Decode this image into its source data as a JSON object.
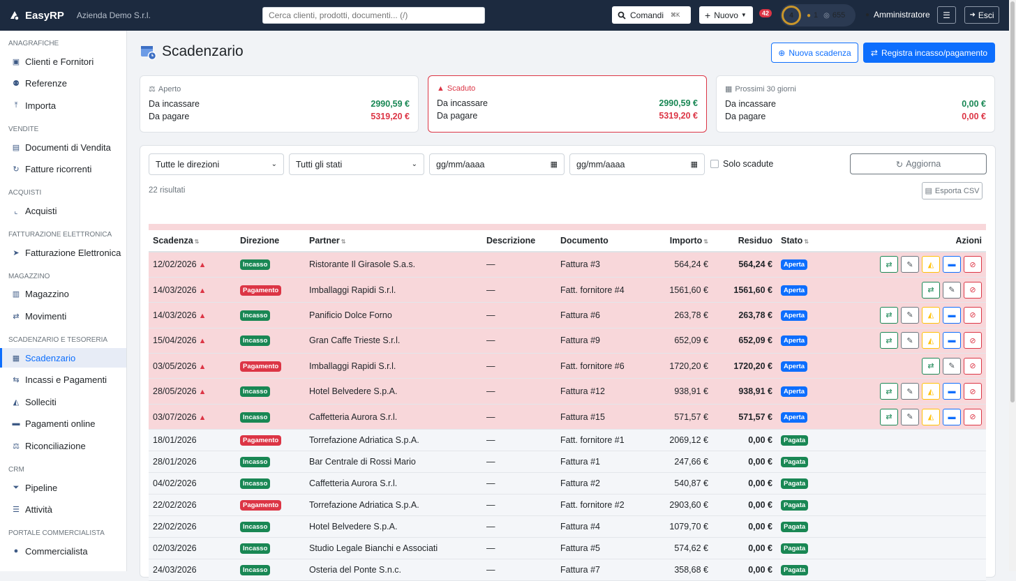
{
  "topbar": {
    "brand": "EasyRP",
    "company": "Azienda Demo S.r.l.",
    "search_placeholder": "Cerca clienti, prodotti, documenti... (/)",
    "commands_label": "Comandi",
    "commands_kbd": "⌘K",
    "new_label": "Nuovo",
    "notifications_count": "42",
    "level": "4",
    "streak": "1",
    "points": "655",
    "user": "Amministratore",
    "logout_label": "Esci"
  },
  "sidebar": {
    "sections": [
      {
        "title": "Anagrafiche",
        "items": [
          {
            "label": "Clienti e Fornitori",
            "icon": "address-card-icon"
          },
          {
            "label": "Referenze",
            "icon": "users-icon"
          },
          {
            "label": "Importa",
            "icon": "upload-icon"
          }
        ]
      },
      {
        "title": "Vendite",
        "items": [
          {
            "label": "Documenti di Vendita",
            "icon": "file-icon"
          },
          {
            "label": "Fatture ricorrenti",
            "icon": "repeat-icon"
          }
        ]
      },
      {
        "title": "Acquisti",
        "items": [
          {
            "label": "Acquisti",
            "icon": "chart-icon"
          }
        ]
      },
      {
        "title": "Fatturazione Elettronica",
        "items": [
          {
            "label": "Fatturazione Elettronica",
            "icon": "send-icon"
          }
        ]
      },
      {
        "title": "Magazzino",
        "items": [
          {
            "label": "Magazzino",
            "icon": "warehouse-icon"
          },
          {
            "label": "Movimenti",
            "icon": "arrows-icon"
          }
        ]
      },
      {
        "title": "Scadenzario e Tesoreria",
        "items": [
          {
            "label": "Scadenzario",
            "icon": "calendar-clock-icon",
            "active": true
          },
          {
            "label": "Incassi e Pagamenti",
            "icon": "exchange-icon"
          },
          {
            "label": "Solleciti",
            "icon": "bell-icon"
          },
          {
            "label": "Pagamenti online",
            "icon": "credit-card-icon"
          },
          {
            "label": "Riconciliazione",
            "icon": "scale-icon"
          }
        ]
      },
      {
        "title": "CRM",
        "items": [
          {
            "label": "Pipeline",
            "icon": "funnel-icon"
          },
          {
            "label": "Attività",
            "icon": "list-check-icon"
          }
        ]
      },
      {
        "title": "Portale Commercialista",
        "items": [
          {
            "label": "Commercialista",
            "icon": "user-icon"
          }
        ]
      }
    ]
  },
  "page": {
    "title": "Scadenzario",
    "new_due_label": "Nuova scadenza",
    "register_label": "Registra incasso/pagamento"
  },
  "cards": [
    {
      "title": "Aperto",
      "in_label": "Da incassare",
      "in_value": "2990,59 €",
      "out_label": "Da pagare",
      "out_value": "5319,20 €"
    },
    {
      "title": "Scaduto",
      "in_label": "Da incassare",
      "in_value": "2990,59 €",
      "out_label": "Da pagare",
      "out_value": "5319,20 €"
    },
    {
      "title": "Prossimi 30 giorni",
      "in_label": "Da incassare",
      "in_value": "0,00 €",
      "out_label": "Da pagare",
      "out_value": "0,00 €"
    }
  ],
  "filters": {
    "direction": "Tutte le direzioni",
    "status": "Tutti gli stati",
    "date_from": "gg/mm/aaaa",
    "date_to": "gg/mm/aaaa",
    "only_overdue": "Solo scadute",
    "refresh_label": "Aggiorna",
    "results": "22 risultati",
    "export_label": "Esporta CSV"
  },
  "table": {
    "headers": {
      "due": "Scadenza",
      "direction": "Direzione",
      "partner": "Partner",
      "description": "Descrizione",
      "document": "Documento",
      "amount": "Importo",
      "residual": "Residuo",
      "status": "Stato",
      "actions": "Azioni"
    },
    "rows": [
      {
        "due": "12/02/2026",
        "overdue": true,
        "direction": "Incasso",
        "partner": "Ristorante Il Girasole S.a.s.",
        "description": "—",
        "document": "Fattura #3",
        "amount": "564,24 €",
        "residual": "564,24 €",
        "status": "Aperta"
      },
      {
        "due": "14/03/2026",
        "overdue": true,
        "direction": "Pagamento",
        "partner": "Imballaggi Rapidi S.r.l.",
        "description": "—",
        "document": "Fatt. fornitore #4",
        "amount": "1561,60 €",
        "residual": "1561,60 €",
        "status": "Aperta"
      },
      {
        "due": "14/03/2026",
        "overdue": true,
        "direction": "Incasso",
        "partner": "Panificio Dolce Forno",
        "description": "—",
        "document": "Fattura #6",
        "amount": "263,78 €",
        "residual": "263,78 €",
        "status": "Aperta"
      },
      {
        "due": "15/04/2026",
        "overdue": true,
        "direction": "Incasso",
        "partner": "Gran Caffe Trieste S.r.l.",
        "description": "—",
        "document": "Fattura #9",
        "amount": "652,09 €",
        "residual": "652,09 €",
        "status": "Aperta"
      },
      {
        "due": "03/05/2026",
        "overdue": true,
        "direction": "Pagamento",
        "partner": "Imballaggi Rapidi S.r.l.",
        "description": "—",
        "document": "Fatt. fornitore #6",
        "amount": "1720,20 €",
        "residual": "1720,20 €",
        "status": "Aperta"
      },
      {
        "due": "28/05/2026",
        "overdue": true,
        "direction": "Incasso",
        "partner": "Hotel Belvedere S.p.A.",
        "description": "—",
        "document": "Fattura #12",
        "amount": "938,91 €",
        "residual": "938,91 €",
        "status": "Aperta"
      },
      {
        "due": "03/07/2026",
        "overdue": true,
        "direction": "Incasso",
        "partner": "Caffetteria Aurora S.r.l.",
        "description": "—",
        "document": "Fattura #15",
        "amount": "571,57 €",
        "residual": "571,57 €",
        "status": "Aperta"
      },
      {
        "due": "18/01/2026",
        "overdue": false,
        "direction": "Pagamento",
        "partner": "Torrefazione Adriatica S.p.A.",
        "description": "—",
        "document": "Fatt. fornitore #1",
        "amount": "2069,12 €",
        "residual": "0,00 €",
        "status": "Pagata"
      },
      {
        "due": "28/01/2026",
        "overdue": false,
        "direction": "Incasso",
        "partner": "Bar Centrale di Rossi Mario",
        "description": "—",
        "document": "Fattura #1",
        "amount": "247,66 €",
        "residual": "0,00 €",
        "status": "Pagata"
      },
      {
        "due": "04/02/2026",
        "overdue": false,
        "direction": "Incasso",
        "partner": "Caffetteria Aurora S.r.l.",
        "description": "—",
        "document": "Fattura #2",
        "amount": "540,87 €",
        "residual": "0,00 €",
        "status": "Pagata"
      },
      {
        "due": "22/02/2026",
        "overdue": false,
        "direction": "Pagamento",
        "partner": "Torrefazione Adriatica S.p.A.",
        "description": "—",
        "document": "Fatt. fornitore #2",
        "amount": "2903,60 €",
        "residual": "0,00 €",
        "status": "Pagata"
      },
      {
        "due": "22/02/2026",
        "overdue": false,
        "direction": "Incasso",
        "partner": "Hotel Belvedere S.p.A.",
        "description": "—",
        "document": "Fattura #4",
        "amount": "1079,70 €",
        "residual": "0,00 €",
        "status": "Pagata"
      },
      {
        "due": "02/03/2026",
        "overdue": false,
        "direction": "Incasso",
        "partner": "Studio Legale Bianchi e Associati",
        "description": "—",
        "document": "Fattura #5",
        "amount": "574,62 €",
        "residual": "0,00 €",
        "status": "Pagata"
      },
      {
        "due": "24/03/2026",
        "overdue": false,
        "direction": "Incasso",
        "partner": "Osteria del Ponte S.n.c.",
        "description": "—",
        "document": "Fattura #7",
        "amount": "358,68 €",
        "residual": "0,00 €",
        "status": "Pagata"
      }
    ]
  }
}
